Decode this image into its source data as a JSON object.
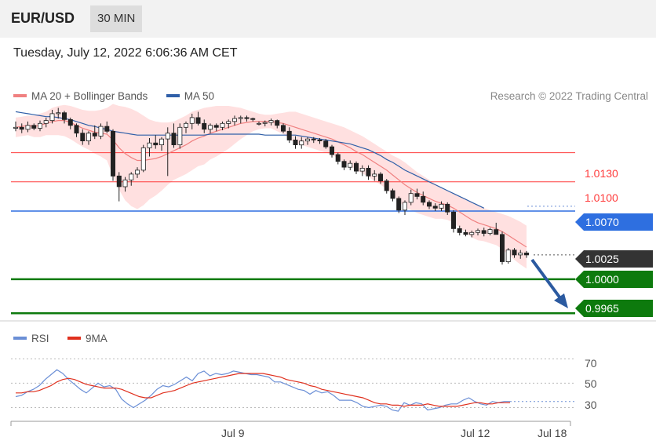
{
  "header": {
    "pair": "EUR/USD",
    "timeframe": "30 MIN"
  },
  "datetime": "Tuesday, July 12, 2022 6:06:36 AM CET",
  "legend": {
    "ma20": {
      "label": "MA 20 + Bollinger Bands",
      "color": "#f08080"
    },
    "ma50": {
      "label": "MA 50",
      "color": "#2f5fa8"
    },
    "credit": "Research © 2022 Trading Central"
  },
  "rsi_legend": {
    "rsi": {
      "label": "RSI",
      "color": "#6b8fd6"
    },
    "ma9": {
      "label": "9MA",
      "color": "#e0301e"
    }
  },
  "colors": {
    "up": "#ffffff",
    "down": "#222222",
    "support": "#0d7a0d",
    "pivot": "#2e6fe0",
    "resistance": "#ff3b3b",
    "band": "#ffd6d6",
    "arrow": "#2b5aa0"
  },
  "chart_data": [
    {
      "type": "candlestick",
      "y_range": [
        0.9958,
        1.0178
      ],
      "series": [
        {
          "name": "MA 20 + Bollinger Bands"
        },
        {
          "name": "MA 50"
        }
      ],
      "candles": [
        [
          1.0155,
          1.0162,
          1.0152,
          1.0156
        ],
        [
          1.0156,
          1.016,
          1.015,
          1.0154
        ],
        [
          1.0154,
          1.0162,
          1.0151,
          1.0158
        ],
        [
          1.0158,
          1.016,
          1.0153,
          1.0155
        ],
        [
          1.0155,
          1.0163,
          1.0152,
          1.016
        ],
        [
          1.016,
          1.0166,
          1.0156,
          1.0163
        ],
        [
          1.0163,
          1.0174,
          1.016,
          1.017
        ],
        [
          1.017,
          1.0176,
          1.0165,
          1.0171
        ],
        [
          1.0171,
          1.0173,
          1.016,
          1.0164
        ],
        [
          1.0164,
          1.0166,
          1.0154,
          1.0158
        ],
        [
          1.0158,
          1.016,
          1.0146,
          1.015
        ],
        [
          1.015,
          1.0154,
          1.0138,
          1.0142
        ],
        [
          1.0142,
          1.0152,
          1.0138,
          1.015
        ],
        [
          1.015,
          1.0158,
          1.0144,
          1.0147
        ],
        [
          1.0147,
          1.016,
          1.0144,
          1.0157
        ],
        [
          1.0157,
          1.0162,
          1.015,
          1.0152
        ],
        [
          1.0152,
          1.0154,
          1.0101,
          1.0106
        ],
        [
          1.0106,
          1.011,
          1.008,
          1.0095
        ],
        [
          1.0095,
          1.0105,
          1.009,
          1.0102
        ],
        [
          1.0102,
          1.011,
          1.0096,
          1.0108
        ],
        [
          1.0108,
          1.0115,
          1.0104,
          1.0112
        ],
        [
          1.0112,
          1.0138,
          1.011,
          1.0135
        ],
        [
          1.0135,
          1.0145,
          1.0126,
          1.014
        ],
        [
          1.014,
          1.0148,
          1.0134,
          1.0138
        ],
        [
          1.0138,
          1.0146,
          1.0132,
          1.0144
        ],
        [
          1.0144,
          1.0156,
          1.0106,
          1.015
        ],
        [
          1.015,
          1.016,
          1.0135,
          1.0138
        ],
        [
          1.0138,
          1.016,
          1.0134,
          1.0156
        ],
        [
          1.0156,
          1.0162,
          1.015,
          1.016
        ],
        [
          1.016,
          1.017,
          1.0154,
          1.0166
        ],
        [
          1.0166,
          1.0172,
          1.0158,
          1.016
        ],
        [
          1.016,
          1.0164,
          1.015,
          1.0154
        ],
        [
          1.0154,
          1.016,
          1.015,
          1.0158
        ],
        [
          1.0158,
          1.016,
          1.0152,
          1.0156
        ],
        [
          1.0156,
          1.0162,
          1.0153,
          1.016
        ],
        [
          1.016,
          1.0164,
          1.0155,
          1.0162
        ],
        [
          1.0162,
          1.0168,
          1.0158,
          1.0165
        ],
        [
          1.0165,
          1.0168,
          1.016,
          1.0166
        ],
        [
          1.0166,
          1.0168,
          1.0162,
          1.0165
        ],
        [
          1.0165,
          1.0166,
          1.0162,
          1.0164
        ],
        [
          1.016,
          1.0162,
          1.0158,
          1.016
        ],
        [
          1.016,
          1.0163,
          1.0157,
          1.0161
        ],
        [
          1.0161,
          1.0165,
          1.0158,
          1.0163
        ],
        [
          1.0163,
          1.0164,
          1.0155,
          1.0158
        ],
        [
          1.0158,
          1.016,
          1.015,
          1.0152
        ],
        [
          1.0152,
          1.0156,
          1.014,
          1.0143
        ],
        [
          1.0143,
          1.0147,
          1.0134,
          1.0138
        ],
        [
          1.0138,
          1.0146,
          1.0134,
          1.0142
        ],
        [
          1.0142,
          1.0146,
          1.0138,
          1.0144
        ],
        [
          1.0144,
          1.0146,
          1.014,
          1.0143
        ],
        [
          1.0143,
          1.0145,
          1.0139,
          1.0142
        ],
        [
          1.0142,
          1.0144,
          1.0134,
          1.0136
        ],
        [
          1.0136,
          1.0138,
          1.0125,
          1.0128
        ],
        [
          1.0128,
          1.013,
          1.0118,
          1.0121
        ],
        [
          1.0121,
          1.0123,
          1.0112,
          1.0115
        ],
        [
          1.0115,
          1.0122,
          1.0112,
          1.0119
        ],
        [
          1.0119,
          1.0121,
          1.0108,
          1.0111
        ],
        [
          1.0111,
          1.0117,
          1.0106,
          1.0114
        ],
        [
          1.0114,
          1.0117,
          1.0102,
          1.0106
        ],
        [
          1.0106,
          1.0112,
          1.0101,
          1.0108
        ],
        [
          1.0108,
          1.011,
          1.0098,
          1.0101
        ],
        [
          1.0101,
          1.0103,
          1.0088,
          1.0091
        ],
        [
          1.0091,
          1.0093,
          1.008,
          1.0083
        ],
        [
          1.0083,
          1.0085,
          1.0068,
          1.0071
        ],
        [
          1.0071,
          1.0081,
          1.0066,
          1.0079
        ],
        [
          1.0079,
          1.0092,
          1.0076,
          1.0088
        ],
        [
          1.0088,
          1.0093,
          1.0082,
          1.0085
        ],
        [
          1.0085,
          1.009,
          1.0076,
          1.0079
        ],
        [
          1.0079,
          1.0081,
          1.0072,
          1.0075
        ],
        [
          1.0075,
          1.0078,
          1.007,
          1.0073
        ],
        [
          1.0073,
          1.008,
          1.007,
          1.0077
        ],
        [
          1.0077,
          1.0079,
          1.0066,
          1.0069
        ],
        [
          1.0069,
          1.0071,
          1.0048,
          1.0052
        ],
        [
          1.0052,
          1.0055,
          1.0045,
          1.0048
        ],
        [
          1.0048,
          1.0051,
          1.0044,
          1.0046
        ],
        [
          1.0046,
          1.005,
          1.0043,
          1.0048
        ],
        [
          1.0048,
          1.0052,
          1.0045,
          1.005
        ],
        [
          1.005,
          1.0053,
          1.0044,
          1.0047
        ],
        [
          1.0047,
          1.0053,
          1.0045,
          1.0051
        ],
        [
          1.0051,
          1.0058,
          1.0048,
          1.0046
        ],
        [
          1.0046,
          1.0049,
          1.0015,
          1.0018
        ],
        [
          1.0018,
          1.0032,
          1.0016,
          1.003
        ],
        [
          1.003,
          1.0032,
          1.0022,
          1.0025
        ],
        [
          1.0025,
          1.003,
          1.0021,
          1.0027
        ],
        [
          1.0027,
          1.0029,
          1.0022,
          1.0025
        ]
      ],
      "ma20": [
        1.0156,
        1.0157,
        1.0158,
        1.0157,
        1.0158,
        1.016,
        1.0162,
        1.0163,
        1.0163,
        1.0161,
        1.0158,
        1.0155,
        1.0153,
        1.0151,
        1.015,
        1.0149,
        1.0143,
        1.0135,
        1.0129,
        1.0125,
        1.0122,
        1.0122,
        1.0123,
        1.0124,
        1.0126,
        1.0129,
        1.0132,
        1.0135,
        1.0138,
        1.0142,
        1.0145,
        1.0147,
        1.015,
        1.0152,
        1.0154,
        1.0156,
        1.0158,
        1.016,
        1.0161,
        1.0162,
        1.0162,
        1.0162,
        1.0162,
        1.0161,
        1.016,
        1.0158,
        1.0156,
        1.0154,
        1.0152,
        1.015,
        1.0148,
        1.0146,
        1.0144,
        1.0141,
        1.0138,
        1.0135,
        1.0131,
        1.0128,
        1.0124,
        1.012,
        1.0116,
        1.0112,
        1.0107,
        1.0102,
        1.0097,
        1.0093,
        1.0089,
        1.0086,
        1.0083,
        1.008,
        1.0078,
        1.0076,
        1.0073,
        1.0069,
        1.0065,
        1.0061,
        1.0058,
        1.0056,
        1.0054,
        1.0052,
        1.0049,
        1.0045,
        1.0041,
        1.0037,
        1.0033
      ],
      "bb_upper": [
        1.0166,
        1.0167,
        1.0168,
        1.0168,
        1.017,
        1.0172,
        1.0176,
        1.0178,
        1.0179,
        1.0178,
        1.0176,
        1.0174,
        1.0173,
        1.0173,
        1.0174,
        1.0176,
        1.018,
        1.0178,
        1.0177,
        1.0175,
        1.0172,
        1.0168,
        1.0164,
        1.0162,
        1.0161,
        1.0161,
        1.0162,
        1.0165,
        1.0168,
        1.0172,
        1.0174,
        1.0176,
        1.0177,
        1.0178,
        1.0178,
        1.0178,
        1.0177,
        1.0176,
        1.0174,
        1.0172,
        1.017,
        1.0169,
        1.0169,
        1.017,
        1.0171,
        1.0172,
        1.0172,
        1.017,
        1.0168,
        1.0166,
        1.0164,
        1.0162,
        1.016,
        1.0158,
        1.0156,
        1.0153,
        1.015,
        1.0147,
        1.0143,
        1.0139,
        1.0135,
        1.0131,
        1.0127,
        1.0124,
        1.012,
        1.0115,
        1.011,
        1.0106,
        1.0102,
        1.0098,
        1.0094,
        1.0091,
        1.0088,
        1.0085,
        1.0082,
        1.0079,
        1.0076,
        1.0073,
        1.0071,
        1.0069,
        1.0067,
        1.0065,
        1.0062,
        1.0059,
        1.0055
      ],
      "bb_lower": [
        1.0146,
        1.0147,
        1.0148,
        1.0146,
        1.0146,
        1.0148,
        1.0148,
        1.0148,
        1.0147,
        1.0144,
        1.014,
        1.0136,
        1.0133,
        1.0129,
        1.0126,
        1.0122,
        1.0106,
        1.0092,
        1.0081,
        1.0075,
        1.0072,
        1.0076,
        1.0082,
        1.0086,
        1.0091,
        1.0097,
        1.0102,
        1.0105,
        1.0108,
        1.0112,
        1.0116,
        1.0118,
        1.0123,
        1.0126,
        1.013,
        1.0134,
        1.0139,
        1.0144,
        1.0148,
        1.0152,
        1.0154,
        1.0155,
        1.0155,
        1.0152,
        1.0149,
        1.0144,
        1.014,
        1.0138,
        1.0136,
        1.0134,
        1.0132,
        1.013,
        1.0128,
        1.0124,
        1.012,
        1.0117,
        1.0112,
        1.0109,
        1.0105,
        1.0101,
        1.0097,
        1.0093,
        1.0087,
        1.008,
        1.0074,
        1.0071,
        1.0068,
        1.0066,
        1.0064,
        1.0062,
        1.0062,
        1.0061,
        1.0058,
        1.0053,
        1.0048,
        1.0043,
        1.004,
        1.0039,
        1.0037,
        1.0035,
        1.0031,
        1.0025,
        1.002,
        1.0015,
        1.0011
      ],
      "ma50": [
        1.0172,
        1.0171,
        1.017,
        1.0169,
        1.0168,
        1.0167,
        1.0167,
        1.0166,
        1.0165,
        1.0164,
        1.0162,
        1.016,
        1.0158,
        1.0157,
        1.0155,
        1.0154,
        1.0152,
        1.0151,
        1.015,
        1.0149,
        1.0148,
        1.0148,
        1.0148,
        1.0148,
        1.0148,
        1.0148,
        1.0148,
        1.0148,
        1.0148,
        1.0148,
        1.0148,
        1.0148,
        1.0149,
        1.0149,
        1.0149,
        1.0149,
        1.0149,
        1.0149,
        1.0149,
        1.0149,
        1.0149,
        1.0148,
        1.0148,
        1.0148,
        1.0148,
        1.0148,
        1.0148,
        1.0147,
        1.0146,
        1.0145,
        1.0144,
        1.0143,
        1.0142,
        1.0141,
        1.014,
        1.0139,
        1.0137,
        1.0135,
        1.0133,
        1.013,
        1.0127,
        1.0123,
        1.012,
        1.0116,
        1.0112,
        1.0109,
        1.0106,
        1.0103,
        1.01,
        1.0097,
        1.0094,
        1.0091,
        1.0088,
        1.0085,
        1.0082,
        1.0079,
        1.0076,
        1.0073
      ],
      "levels": [
        {
          "value": 1.013,
          "label": "1.0130",
          "kind": "resistance"
        },
        {
          "value": 1.01,
          "label": "1.0100",
          "kind": "resistance"
        },
        {
          "value": 1.007,
          "label": "1.0070",
          "kind": "pivot"
        },
        {
          "value": 1.0025,
          "label": "1.0025",
          "kind": "last"
        },
        {
          "value": 1.0,
          "label": "1.0000",
          "kind": "support"
        },
        {
          "value": 0.9965,
          "label": "0.9965",
          "kind": "support"
        }
      ]
    },
    {
      "type": "line",
      "y_range": [
        20,
        76
      ],
      "y_ticks": [
        30,
        50,
        70
      ],
      "x_labels": [
        "Jul 9",
        "Jul 12",
        "Jul 18"
      ],
      "series": [
        {
          "name": "RSI",
          "values": [
            39,
            40,
            43,
            45,
            48,
            53,
            57,
            61,
            58,
            53,
            49,
            45,
            42,
            46,
            50,
            47,
            48,
            45,
            37,
            33,
            30,
            33,
            36,
            40,
            45,
            48,
            47,
            49,
            52,
            55,
            52,
            58,
            60,
            56,
            58,
            57,
            58,
            60,
            59,
            58,
            57,
            57,
            56,
            55,
            51,
            51,
            49,
            47,
            45,
            44,
            41,
            44,
            42,
            43,
            40,
            36,
            36,
            36,
            34,
            31,
            30,
            31,
            32,
            31,
            28,
            27,
            34,
            32,
            34,
            33,
            28,
            29,
            30,
            32,
            33,
            33,
            36,
            38,
            35,
            33,
            32,
            35,
            34,
            35,
            35
          ]
        },
        {
          "name": "9MA",
          "values": [
            42,
            42,
            43,
            43,
            44,
            46,
            48,
            51,
            53,
            54,
            53,
            51,
            49,
            48,
            47,
            46,
            46,
            46,
            45,
            43,
            41,
            39,
            38,
            38,
            40,
            42,
            43,
            44,
            46,
            48,
            50,
            51,
            52,
            53,
            54,
            55,
            56,
            57,
            58,
            58,
            58,
            58,
            58,
            57,
            56,
            55,
            53,
            52,
            51,
            50,
            48,
            47,
            45,
            44,
            43,
            42,
            41,
            40,
            39,
            38,
            36,
            34,
            33,
            33,
            32,
            32,
            31,
            32,
            32,
            32,
            33,
            32,
            31,
            31,
            31,
            31,
            32,
            33,
            34,
            34,
            33,
            33,
            34,
            34,
            34
          ]
        }
      ]
    }
  ],
  "axes": {
    "levels": {
      "r1": "1.0130",
      "r2": "1.0100",
      "pivot": "1.0070",
      "last": "1.0025",
      "s1": "1.0000",
      "s2": "0.9965"
    },
    "rsi_ticks": {
      "t70": "70",
      "t50": "50",
      "t30": "30"
    },
    "x": {
      "jul9": "Jul 9",
      "jul12": "Jul 12",
      "jul18": "Jul 18"
    }
  }
}
